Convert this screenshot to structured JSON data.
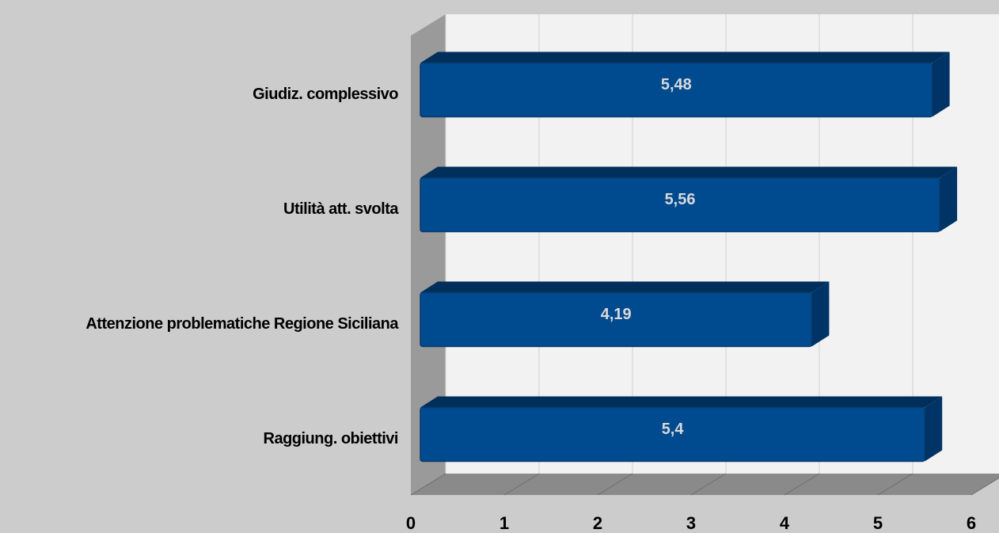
{
  "chart_data": {
    "type": "bar3d_horizontal",
    "categories": [
      "Giudiz. complessivo",
      "Utilità att. svolta",
      "Attenzione problematiche Regione Siciliana",
      "Raggiung. obiettivi"
    ],
    "values": [
      5.48,
      5.56,
      4.19,
      5.4
    ],
    "value_labels": [
      "5,48",
      "5,56",
      "4,19",
      "5,4"
    ],
    "color": "#004a8f",
    "xlim": [
      0,
      6
    ],
    "xticks": [
      0,
      1,
      2,
      3,
      4,
      5,
      6
    ],
    "grid": true
  }
}
